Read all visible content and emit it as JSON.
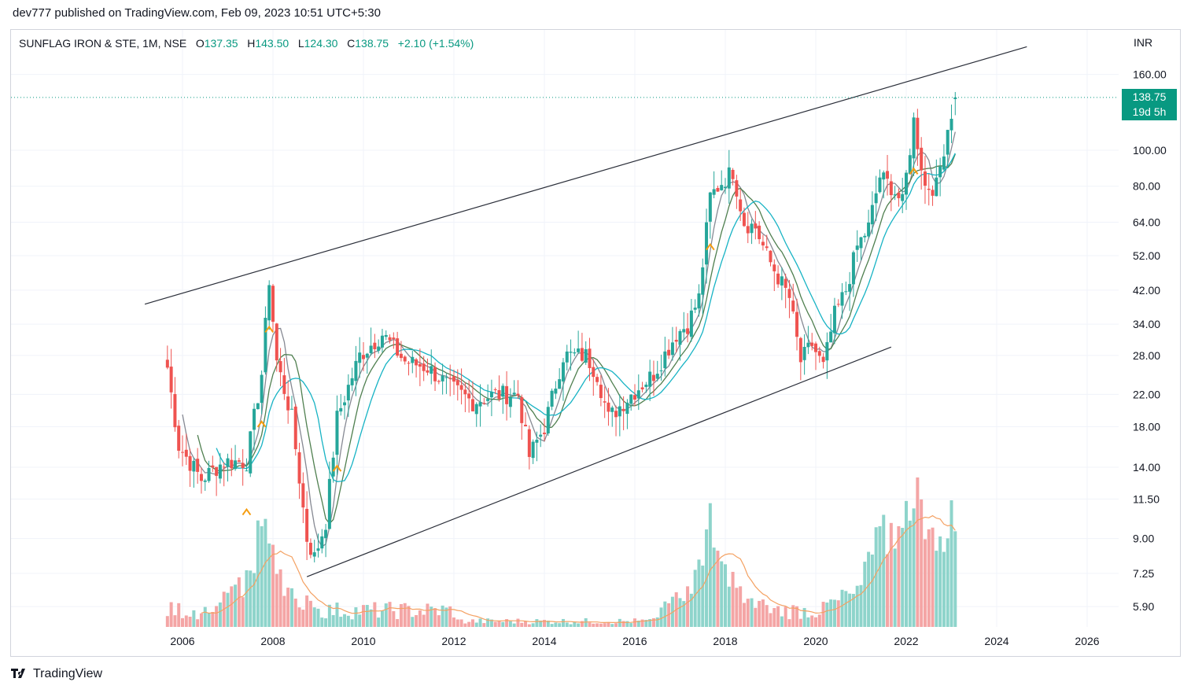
{
  "header": {
    "published_by": "dev777 published on TradingView.com, Feb 09, 2023 10:51 UTC+5:30"
  },
  "legend": {
    "symbol": "SUNFLAG IRON & STE, 1M, NSE",
    "open_label": "O",
    "open": "137.35",
    "high_label": "H",
    "high": "143.50",
    "low_label": "L",
    "low": "124.30",
    "close_label": "C",
    "close": "138.75",
    "change": "+2.10 (+1.54%)"
  },
  "currency": "INR",
  "price_tag": {
    "price": "138.75",
    "countdown": "19d 5h"
  },
  "brand": "TradingView",
  "colors": {
    "up": "#26a69a",
    "down": "#ef5350",
    "up_volume": "#8ed4cb",
    "down_volume": "#f4a5a5",
    "ma_fast": "#868993",
    "ma_mid": "#4f7f4f",
    "ma_slow": "#17b3c4",
    "volume_ma": "#f4a162",
    "trendline": "#2a2e39",
    "marker": "#f59d10",
    "last_price": "#089981"
  },
  "chart_data": {
    "type": "candlestick",
    "scale": "log",
    "timeframe": "1M",
    "y_ticks": [
      "160.00",
      "100.00",
      "80.00",
      "64.00",
      "52.00",
      "42.00",
      "34.00",
      "28.00",
      "22.00",
      "18.00",
      "14.00",
      "11.50",
      "9.00",
      "7.25",
      "5.90"
    ],
    "x_ticks": [
      "2006",
      "2008",
      "2010",
      "2012",
      "2014",
      "2016",
      "2018",
      "2020",
      "2022",
      "2024",
      "2026"
    ],
    "ylim": [
      5.5,
      190
    ],
    "last_price": 138.75,
    "grid": true,
    "approx_closes_by_date": [
      [
        "2005-09",
        26
      ],
      [
        "2005-12",
        16
      ],
      [
        "2006-06",
        13
      ],
      [
        "2006-12",
        14.5
      ],
      [
        "2007-06",
        14.5
      ],
      [
        "2007-10",
        25
      ],
      [
        "2007-12",
        45
      ],
      [
        "2008-02",
        27
      ],
      [
        "2008-06",
        19
      ],
      [
        "2008-10",
        9
      ],
      [
        "2008-12",
        8
      ],
      [
        "2009-03",
        10
      ],
      [
        "2009-06",
        19
      ],
      [
        "2009-12",
        28
      ],
      [
        "2010-06",
        32
      ],
      [
        "2010-12",
        27
      ],
      [
        "2011-06",
        26
      ],
      [
        "2011-12",
        23
      ],
      [
        "2012-06",
        21
      ],
      [
        "2012-12",
        22
      ],
      [
        "2013-06",
        22
      ],
      [
        "2013-09",
        15
      ],
      [
        "2014-01",
        18
      ],
      [
        "2014-06",
        28
      ],
      [
        "2014-12",
        28
      ],
      [
        "2015-03",
        25
      ],
      [
        "2015-06",
        19
      ],
      [
        "2015-12",
        22
      ],
      [
        "2016-06",
        25
      ],
      [
        "2016-12",
        32
      ],
      [
        "2017-03",
        34
      ],
      [
        "2017-06",
        40
      ],
      [
        "2017-09",
        75
      ],
      [
        "2017-12",
        82
      ],
      [
        "2018-03",
        88
      ],
      [
        "2018-06",
        64
      ],
      [
        "2018-09",
        62
      ],
      [
        "2018-12",
        52
      ],
      [
        "2019-06",
        40
      ],
      [
        "2019-09",
        27
      ],
      [
        "2019-12",
        30
      ],
      [
        "2020-03",
        26
      ],
      [
        "2020-06",
        36
      ],
      [
        "2020-09",
        42
      ],
      [
        "2020-12",
        55
      ],
      [
        "2021-03",
        62
      ],
      [
        "2021-06",
        85
      ],
      [
        "2021-09",
        80
      ],
      [
        "2021-12",
        72
      ],
      [
        "2022-03",
        120
      ],
      [
        "2022-06",
        80
      ],
      [
        "2022-09",
        80
      ],
      [
        "2022-12",
        115
      ],
      [
        "2023-02",
        138.75
      ]
    ],
    "volume_peaks_by_date": [
      [
        "2007-10",
        "high"
      ],
      [
        "2017-09",
        "high"
      ],
      [
        "2021-06",
        "high"
      ],
      [
        "2022-03",
        "highest"
      ],
      [
        "2023-01",
        "high"
      ]
    ],
    "trendlines": [
      {
        "name": "upper-channel",
        "from": [
          "2005-03",
          38.5
        ],
        "to": [
          "2024-09",
          190
        ]
      },
      {
        "name": "lower-channel",
        "from": [
          "2008-10",
          7.1
        ],
        "to": [
          "2021-09",
          29.5
        ]
      }
    ]
  }
}
